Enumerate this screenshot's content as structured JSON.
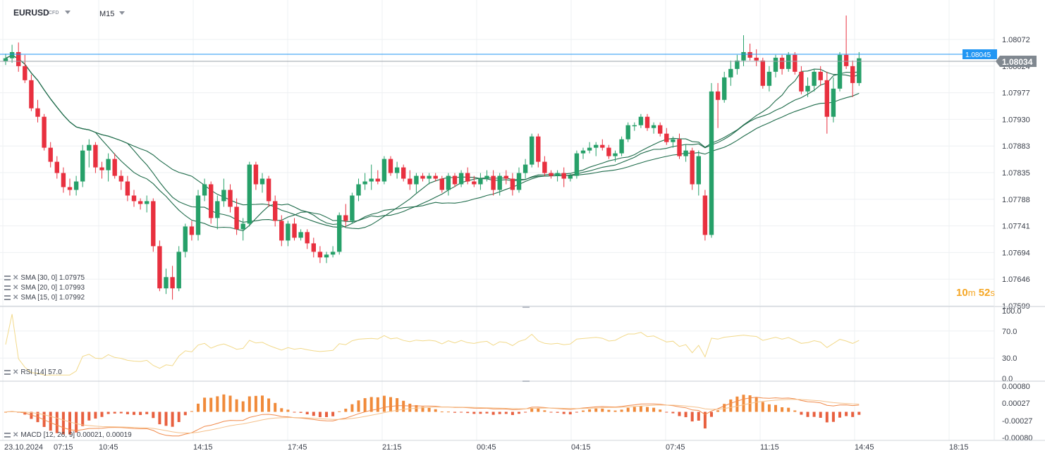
{
  "header": {
    "symbol": "EURUSD",
    "symbol_type": "CFD",
    "timeframe": "M15"
  },
  "price_axis": {
    "ticks": [
      "1.08072",
      "1.08024",
      "1.07977",
      "1.07930",
      "1.07883",
      "1.07835",
      "1.07788",
      "1.07741",
      "1.07694",
      "1.07646",
      "1.07599"
    ]
  },
  "markers": {
    "bid_label": "1.08045",
    "last_label": "1.08034",
    "bid_color": "#2196f3",
    "last_color": "#808890"
  },
  "timer": {
    "minutes": "10",
    "minutes_unit": "m",
    "seconds": "52",
    "seconds_unit": "s"
  },
  "indicators": {
    "sma30": "SMA [30, 0]  1.07975",
    "sma20": "SMA [20, 0]  1.07993",
    "sma15": "SMA [15, 0]  1.07992",
    "rsi": "RSI [14]  57.0",
    "macd": "MACD [12, 26, 9]  0.00021,  0.00019"
  },
  "rsi_axis": {
    "ticks": [
      "100.0",
      "70.0",
      "30.0",
      "0.0"
    ]
  },
  "macd_axis": {
    "ticks": [
      "0.00080",
      "0.00027",
      "-0.00027",
      "-0.00080"
    ]
  },
  "time_axis": {
    "labels": [
      "23.10.2024",
      "07:15",
      "10:45",
      "14:15",
      "17:45",
      "21:15",
      "00:45",
      "04:15",
      "07:45",
      "11:15",
      "14:45",
      "18:15"
    ]
  },
  "colors": {
    "up": "#26a069",
    "down": "#e8303f",
    "sma": "#1e6b4a",
    "rsi": "#f2d98a",
    "macd_line": "#f0894a",
    "signal_line": "#f5c08a",
    "histogram": "#f08a3a",
    "timer": "#f5a623"
  },
  "chart_data": {
    "type": "candlestick",
    "series": [
      {
        "name": "EURUSD",
        "type": "candlestick",
        "ohlc": [
          [
            1.08028,
            1.08042,
            1.08022,
            1.08034
          ],
          [
            1.08034,
            1.08058,
            1.08026,
            1.08045
          ],
          [
            1.08045,
            1.08062,
            1.0801,
            1.0802
          ],
          [
            1.0802,
            1.0804,
            1.0799,
            1.07995
          ],
          [
            1.07995,
            1.08005,
            1.0794,
            1.07945
          ],
          [
            1.07945,
            1.0796,
            1.0792,
            1.0793
          ],
          [
            1.0793,
            1.07935,
            1.0787,
            1.07875
          ],
          [
            1.07875,
            1.07885,
            1.0784,
            1.0785
          ],
          [
            1.0785,
            1.0786,
            1.0782,
            1.0783
          ],
          [
            1.0783,
            1.0784,
            1.07795,
            1.07805
          ],
          [
            1.07805,
            1.0782,
            1.0779,
            1.078
          ],
          [
            1.078,
            1.07825,
            1.0779,
            1.07815
          ],
          [
            1.07815,
            1.0788,
            1.07805,
            1.0787
          ],
          [
            1.0787,
            1.0789,
            1.0784,
            1.0788
          ],
          [
            1.0788,
            1.07885,
            1.0783,
            1.0784
          ],
          [
            1.0784,
            1.0785,
            1.0782,
            1.07835
          ],
          [
            1.07835,
            1.07865,
            1.07815,
            1.07855
          ],
          [
            1.07855,
            1.07865,
            1.0782,
            1.07825
          ],
          [
            1.07825,
            1.07835,
            1.078,
            1.07815
          ],
          [
            1.07815,
            1.07825,
            1.0778,
            1.0779
          ],
          [
            1.0779,
            1.078,
            1.0777,
            1.0778
          ],
          [
            1.0778,
            1.07785,
            1.07765,
            1.07775
          ],
          [
            1.07775,
            1.0779,
            1.0776,
            1.0778
          ],
          [
            1.0778,
            1.07785,
            1.0769,
            1.077
          ],
          [
            1.077,
            1.0771,
            1.0762,
            1.07625
          ],
          [
            1.07625,
            1.0766,
            1.07615,
            1.07645
          ],
          [
            1.07645,
            1.07665,
            1.07605,
            1.07625
          ],
          [
            1.07625,
            1.077,
            1.0762,
            1.0769
          ],
          [
            1.0769,
            1.0774,
            1.0768,
            1.07735
          ],
          [
            1.07735,
            1.07745,
            1.0771,
            1.0772
          ],
          [
            1.0772,
            1.078,
            1.0771,
            1.0779
          ],
          [
            1.0779,
            1.0782,
            1.0778,
            1.0781
          ],
          [
            1.0781,
            1.07815,
            1.0774,
            1.0775
          ],
          [
            1.0775,
            1.0779,
            1.0773,
            1.0778
          ],
          [
            1.0778,
            1.0782,
            1.0777,
            1.078
          ],
          [
            1.078,
            1.0781,
            1.0776,
            1.0777
          ],
          [
            1.0777,
            1.07785,
            1.0772,
            1.0773
          ],
          [
            1.0773,
            1.0775,
            1.0771,
            1.0774
          ],
          [
            1.0774,
            1.0785,
            1.07735,
            1.07845
          ],
          [
            1.07845,
            1.0785,
            1.078,
            1.0781
          ],
          [
            1.0781,
            1.0783,
            1.07795,
            1.0782
          ],
          [
            1.0782,
            1.07825,
            1.0777,
            1.0778
          ],
          [
            1.0778,
            1.0779,
            1.07735,
            1.07745
          ],
          [
            1.07745,
            1.07755,
            1.077,
            1.0771
          ],
          [
            1.0771,
            1.07745,
            1.077,
            1.0774
          ],
          [
            1.0774,
            1.0775,
            1.0771,
            1.07715
          ],
          [
            1.07715,
            1.0773,
            1.0771,
            1.07725
          ],
          [
            1.07725,
            1.0773,
            1.07695,
            1.07705
          ],
          [
            1.07705,
            1.07715,
            1.0768,
            1.0769
          ],
          [
            1.0769,
            1.077,
            1.0767,
            1.0768
          ],
          [
            1.0768,
            1.0769,
            1.0767,
            1.07685
          ],
          [
            1.07685,
            1.077,
            1.0768,
            1.0769
          ],
          [
            1.0769,
            1.0776,
            1.07685,
            1.07755
          ],
          [
            1.07755,
            1.07775,
            1.07735,
            1.07745
          ],
          [
            1.07745,
            1.07795,
            1.0774,
            1.0779
          ],
          [
            1.0779,
            1.0782,
            1.0778,
            1.0781
          ],
          [
            1.0781,
            1.0783,
            1.078,
            1.07815
          ],
          [
            1.07815,
            1.07845,
            1.078,
            1.0782
          ],
          [
            1.0782,
            1.07835,
            1.0781,
            1.07815
          ],
          [
            1.07815,
            1.0786,
            1.0781,
            1.07855
          ],
          [
            1.07855,
            1.0786,
            1.07825,
            1.0783
          ],
          [
            1.0783,
            1.0785,
            1.0782,
            1.0784
          ],
          [
            1.0784,
            1.07845,
            1.07815,
            1.0782
          ],
          [
            1.0782,
            1.07835,
            1.078,
            1.0781
          ],
          [
            1.0781,
            1.0783,
            1.07795,
            1.07825
          ],
          [
            1.07825,
            1.0783,
            1.07815,
            1.0782
          ],
          [
            1.0782,
            1.0783,
            1.0781,
            1.07825
          ],
          [
            1.07825,
            1.0783,
            1.07815,
            1.0782
          ],
          [
            1.0782,
            1.07825,
            1.07795,
            1.078
          ],
          [
            1.078,
            1.0783,
            1.0779,
            1.07825
          ],
          [
            1.07825,
            1.0783,
            1.07805,
            1.0781
          ],
          [
            1.0781,
            1.07835,
            1.07805,
            1.0783
          ],
          [
            1.0783,
            1.0784,
            1.0781,
            1.07815
          ],
          [
            1.07815,
            1.07825,
            1.07805,
            1.0781
          ],
          [
            1.0781,
            1.0783,
            1.078,
            1.0782
          ],
          [
            1.0782,
            1.07835,
            1.07815,
            1.07825
          ],
          [
            1.07825,
            1.07835,
            1.0779,
            1.078
          ],
          [
            1.078,
            1.0783,
            1.0779,
            1.07825
          ],
          [
            1.07825,
            1.07835,
            1.0781,
            1.0782
          ],
          [
            1.0782,
            1.0783,
            1.0779,
            1.078
          ],
          [
            1.078,
            1.0784,
            1.07795,
            1.0783
          ],
          [
            1.0783,
            1.07855,
            1.0782,
            1.07845
          ],
          [
            1.07845,
            1.079,
            1.0784,
            1.07895
          ],
          [
            1.07895,
            1.079,
            1.0784,
            1.0785
          ],
          [
            1.0785,
            1.0786,
            1.07825,
            1.0783
          ],
          [
            1.0783,
            1.07835,
            1.0782,
            1.07825
          ],
          [
            1.07825,
            1.07835,
            1.07815,
            1.0783
          ],
          [
            1.0783,
            1.0784,
            1.07805,
            1.0782
          ],
          [
            1.0782,
            1.0783,
            1.07815,
            1.07825
          ],
          [
            1.07825,
            1.0787,
            1.0782,
            1.07865
          ],
          [
            1.07865,
            1.07875,
            1.07855,
            1.0787
          ],
          [
            1.0787,
            1.07885,
            1.07865,
            1.07875
          ],
          [
            1.07875,
            1.07885,
            1.0786,
            1.0788
          ],
          [
            1.0788,
            1.0789,
            1.0787,
            1.07875
          ],
          [
            1.07875,
            1.0788,
            1.07855,
            1.0786
          ],
          [
            1.0786,
            1.0787,
            1.0785,
            1.07865
          ],
          [
            1.07865,
            1.07895,
            1.0786,
            1.0789
          ],
          [
            1.0789,
            1.0792,
            1.07885,
            1.07915
          ],
          [
            1.07915,
            1.0792,
            1.07905,
            1.07915
          ],
          [
            1.07915,
            1.07935,
            1.0791,
            1.0793
          ],
          [
            1.0793,
            1.07935,
            1.07905,
            1.0791
          ],
          [
            1.0791,
            1.0792,
            1.079,
            1.07915
          ],
          [
            1.07915,
            1.0792,
            1.07895,
            1.079
          ],
          [
            1.079,
            1.0791,
            1.0788,
            1.07885
          ],
          [
            1.07885,
            1.07895,
            1.07875,
            1.0789
          ],
          [
            1.0789,
            1.079,
            1.07855,
            1.0786
          ],
          [
            1.0786,
            1.0788,
            1.0785,
            1.0787
          ],
          [
            1.0787,
            1.07875,
            1.078,
            1.0781
          ],
          [
            1.0781,
            1.0787,
            1.0779,
            1.0786
          ],
          [
            1.0779,
            1.078,
            1.0771,
            1.0772
          ],
          [
            1.0772,
            1.0799,
            1.07715,
            1.07975
          ],
          [
            1.07975,
            1.0799,
            1.0791,
            1.0796
          ],
          [
            1.0796,
            1.0801,
            1.07955,
            1.08
          ],
          [
            1.08,
            1.0803,
            1.07985,
            1.08015
          ],
          [
            1.08015,
            1.0804,
            1.08005,
            1.0803
          ],
          [
            1.0803,
            1.08075,
            1.0802,
            1.08045
          ],
          [
            1.08045,
            1.0806,
            1.0803,
            1.08035
          ],
          [
            1.08035,
            1.0805,
            1.0802,
            1.0803
          ],
          [
            1.0803,
            1.08035,
            1.0798,
            1.07985
          ],
          [
            1.07985,
            1.0802,
            1.07975,
            1.0801
          ],
          [
            1.0801,
            1.0804,
            1.08,
            1.08035
          ],
          [
            1.08035,
            1.0804,
            1.08005,
            1.08015
          ],
          [
            1.08015,
            1.08045,
            1.0801,
            1.0804
          ],
          [
            1.0804,
            1.08045,
            1.08005,
            1.0801
          ],
          [
            1.0801,
            1.0802,
            1.0797,
            1.07975
          ],
          [
            1.07975,
            1.08,
            1.07965,
            1.07985
          ],
          [
            1.07985,
            1.08015,
            1.07975,
            1.0801
          ],
          [
            1.0801,
            1.0802,
            1.07985,
            1.07995
          ],
          [
            1.07995,
            1.0801,
            1.079,
            1.0793
          ],
          [
            1.0793,
            1.08,
            1.0792,
            1.0798
          ],
          [
            1.0798,
            1.08045,
            1.07975,
            1.0804
          ],
          [
            1.0804,
            1.0811,
            1.08015,
            1.0802
          ],
          [
            1.0802,
            1.0803,
            1.07965,
            1.0799
          ],
          [
            1.0799,
            1.08045,
            1.07985,
            1.08034
          ]
        ]
      },
      {
        "name": "SMA [30, 0]",
        "type": "line"
      },
      {
        "name": "SMA [20, 0]",
        "type": "line"
      },
      {
        "name": "SMA [15, 0]",
        "type": "line"
      }
    ],
    "ylim": [
      1.07599,
      1.081
    ],
    "rsi": {
      "name": "RSI [14]",
      "last": 57.0,
      "ylim": [
        0,
        100
      ]
    },
    "macd": {
      "name": "MACD [12, 26, 9]",
      "macd": 0.00021,
      "signal": 0.00019,
      "ylim": [
        -0.0008,
        0.0008
      ]
    }
  }
}
